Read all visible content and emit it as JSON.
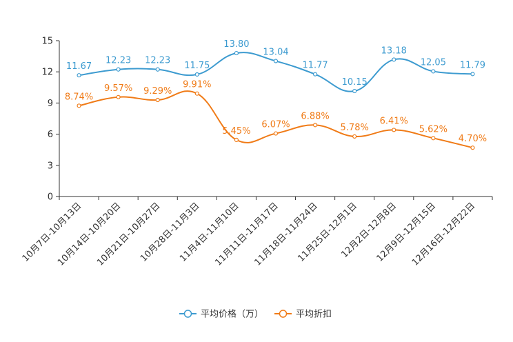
{
  "chart_data": {
    "type": "line",
    "categories": [
      "10月7日-10月13日",
      "10月14日-10月20日",
      "10月21日-10月27日",
      "10月28日-11月3日",
      "11月4日-11月10日",
      "11月11日-11月17日",
      "11月18日-11月24日",
      "11月25日-12月1日",
      "12月2日-12月8日",
      "12月9日-12月15日",
      "12月16日-12月22日"
    ],
    "ylim": [
      0,
      15
    ],
    "yticks": [
      "0",
      "3",
      "6",
      "9",
      "12",
      "15"
    ],
    "ytick_values": [
      0,
      3,
      6,
      9,
      12,
      15
    ],
    "series": [
      {
        "name": "平均价格（万）",
        "color": "#3d9bd0",
        "values": [
          11.67,
          12.23,
          12.23,
          11.75,
          13.8,
          13.04,
          11.77,
          10.15,
          13.18,
          12.05,
          11.79
        ],
        "labels": [
          "11.67",
          "12.23",
          "12.23",
          "11.75",
          "13.80",
          "13.04",
          "11.77",
          "10.15",
          "13.18",
          "12.05",
          "11.79"
        ]
      },
      {
        "name": "平均折扣",
        "color": "#f07b17",
        "values": [
          8.74,
          9.57,
          9.29,
          9.91,
          5.45,
          6.07,
          6.88,
          5.78,
          6.41,
          5.62,
          4.7
        ],
        "labels": [
          "8.74%",
          "9.57%",
          "9.29%",
          "9.91%",
          "5.45%",
          "6.07%",
          "6.88%",
          "5.78%",
          "6.41%",
          "5.62%",
          "4.70%"
        ]
      }
    ],
    "legend_position": "bottom-center"
  }
}
